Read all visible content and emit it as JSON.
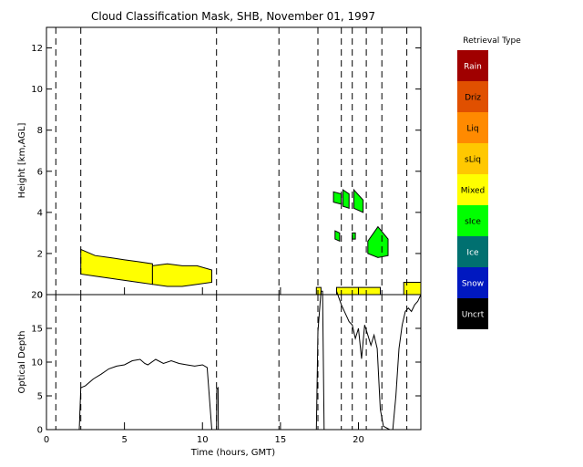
{
  "chart_data": {
    "type": "line",
    "title": "Cloud Classification Mask, SHB, November 01, 1997",
    "xlabel": "Time (hours, GMT)",
    "xlim": [
      0,
      24
    ],
    "xticks": [
      "0",
      "5",
      "10",
      "15",
      "20"
    ],
    "xtick_values": [
      0,
      5,
      10,
      15,
      20
    ],
    "vlines": [
      0.6,
      2.2,
      10.9,
      14.9,
      17.4,
      18.9,
      19.6,
      20.5,
      21.5,
      23.1
    ],
    "panels": [
      {
        "name": "mask",
        "ylabel": "Height [km,AGL]",
        "ylim": [
          0,
          13
        ],
        "yticks": [
          "0",
          "2",
          "4",
          "6",
          "8",
          "10",
          "12"
        ],
        "ytick_values": [
          0,
          2,
          4,
          6,
          8,
          10,
          12
        ],
        "cloud_regions": [
          {
            "class": "Mixed",
            "x_start": 2.2,
            "x_end": 6.8,
            "bottom": [
              1.0,
              0.9,
              0.8,
              0.7,
              0.6,
              0.5
            ],
            "top": [
              2.2,
              1.9,
              1.8,
              1.7,
              1.6,
              1.5
            ]
          },
          {
            "class": "Mixed",
            "x_start": 6.8,
            "x_end": 10.6,
            "bottom": [
              0.5,
              0.4,
              0.4,
              0.5,
              0.6
            ],
            "top": [
              1.4,
              1.5,
              1.4,
              1.4,
              1.2
            ]
          },
          {
            "class": "Mixed",
            "x_start": 17.3,
            "x_end": 17.6,
            "bottom": [
              0.0,
              0.0
            ],
            "top": [
              0.35,
              0.35
            ]
          },
          {
            "class": "Mixed",
            "x_start": 18.6,
            "x_end": 21.4,
            "bottom": [
              0.0,
              0.0
            ],
            "top": [
              0.35,
              0.35
            ]
          },
          {
            "class": "Mixed",
            "x_start": 22.9,
            "x_end": 24.0,
            "bottom": [
              0.0,
              0.0
            ],
            "top": [
              0.6,
              0.6
            ]
          },
          {
            "class": "sIce",
            "x_start": 18.4,
            "x_end": 18.9,
            "bottom": [
              4.5,
              4.4
            ],
            "top": [
              5.0,
              4.9
            ]
          },
          {
            "class": "sIce",
            "x_start": 19.0,
            "x_end": 19.4,
            "bottom": [
              4.3,
              4.2
            ],
            "top": [
              5.1,
              4.9
            ]
          },
          {
            "class": "sIce",
            "x_start": 19.7,
            "x_end": 20.3,
            "bottom": [
              4.2,
              4.0
            ],
            "top": [
              5.1,
              4.6
            ]
          },
          {
            "class": "sIce",
            "x_start": 18.5,
            "x_end": 18.8,
            "bottom": [
              2.7,
              2.6
            ],
            "top": [
              3.1,
              3.0
            ]
          },
          {
            "class": "sIce",
            "x_start": 20.6,
            "x_end": 21.9,
            "bottom": [
              2.0,
              1.8,
              1.9
            ],
            "top": [
              2.6,
              3.3,
              2.7
            ]
          },
          {
            "class": "sIce",
            "x_start": 19.6,
            "x_end": 19.8,
            "bottom": [
              2.7,
              2.7
            ],
            "top": [
              3.0,
              3.0
            ]
          }
        ]
      },
      {
        "name": "optical-depth",
        "ylabel": "Optical Depth",
        "ylim": [
          0,
          20
        ],
        "yticks": [
          "0",
          "5",
          "10",
          "15",
          "20"
        ],
        "ytick_values": [
          0,
          5,
          10,
          15,
          20
        ],
        "series": [
          {
            "x": [
              2.1,
              2.2,
              2.5,
              3.0,
              3.5,
              4.0,
              4.5,
              5.0,
              5.5,
              6.0,
              6.3,
              6.5,
              7.0,
              7.5,
              8.0,
              8.5,
              9.0,
              9.5,
              10.0,
              10.3,
              10.6
            ],
            "y": [
              0,
              6.2,
              6.5,
              7.5,
              8.2,
              9.0,
              9.4,
              9.6,
              10.2,
              10.4,
              9.8,
              9.6,
              10.4,
              9.8,
              10.2,
              9.8,
              9.6,
              9.4,
              9.6,
              9.2,
              0
            ]
          },
          {
            "x": [
              10.9,
              10.92,
              11.0,
              11.02
            ],
            "y": [
              0,
              6.0,
              6.2,
              0
            ]
          },
          {
            "x": [
              17.3,
              17.4,
              17.6,
              17.7,
              17.8
            ],
            "y": [
              0,
              14.5,
              20.5,
              20.5,
              0
            ]
          },
          {
            "x": [
              18.6,
              18.9,
              19.2,
              19.4,
              19.6,
              19.8,
              20.0,
              20.2,
              20.4,
              20.6,
              20.8,
              21.0,
              21.2,
              21.4,
              21.6,
              22.0
            ],
            "y": [
              20.5,
              18.5,
              17.0,
              16.0,
              15.5,
              13.5,
              15.0,
              10.5,
              15.5,
              14.0,
              12.5,
              14.0,
              12.0,
              3.0,
              0.5,
              0
            ]
          },
          {
            "x": [
              22.2,
              22.4,
              22.6,
              22.8,
              23.0,
              23.2,
              23.4,
              23.6,
              23.8,
              24.0
            ],
            "y": [
              0,
              5.0,
              12.0,
              15.5,
              17.5,
              18.0,
              17.5,
              18.5,
              19.0,
              20.0
            ]
          }
        ]
      }
    ],
    "legend": {
      "title": "Retrieval Type",
      "placement": "right",
      "entries": [
        {
          "label": "Rain",
          "color": "#a00000"
        },
        {
          "label": "Driz",
          "color": "#e05000"
        },
        {
          "label": "Liq",
          "color": "#ff8a00"
        },
        {
          "label": "sLiq",
          "color": "#ffc800"
        },
        {
          "label": "Mixed",
          "color": "#ffff00"
        },
        {
          "label": "sIce",
          "color": "#00ff00"
        },
        {
          "label": "Ice",
          "color": "#007070"
        },
        {
          "label": "Snow",
          "color": "#0018c0"
        },
        {
          "label": "Uncrt",
          "color": "#000000"
        }
      ]
    }
  }
}
